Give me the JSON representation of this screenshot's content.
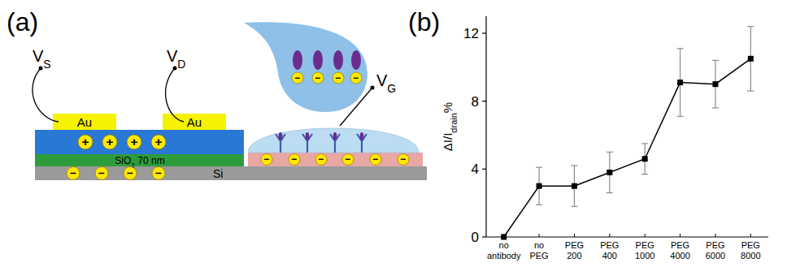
{
  "panel_labels": [
    "(a)",
    "(b)"
  ],
  "diagram": {
    "source_label": {
      "text": "V",
      "sub": "S"
    },
    "drain_label": {
      "text": "V",
      "sub": "D"
    },
    "gate_label": {
      "text": "V",
      "sub": "G"
    },
    "electrodes": [
      "Au",
      "Au"
    ],
    "oxide_label": {
      "text": "SiO",
      "sub": "2",
      "suffix": " 70 nm"
    },
    "substrate_label": "Si",
    "positive_charge": "+",
    "negative_charge": "−"
  },
  "chart_data": {
    "type": "line",
    "categories": [
      "no antibody",
      "no PEG",
      "PEG 200",
      "PEG 400",
      "PEG 1000",
      "PEG 4000",
      "PEG 6000",
      "PEG 8000"
    ],
    "values": [
      0,
      3,
      3,
      3.8,
      4.6,
      9.1,
      9.0,
      10.5
    ],
    "errors": [
      0,
      1.1,
      1.2,
      1.2,
      0.9,
      2.0,
      1.4,
      1.9
    ],
    "color": "#000000",
    "marker": "square",
    "y_label": [
      {
        "text": "ΔI/I"
      },
      {
        "text": "drain",
        "sub": true
      },
      {
        "text": "%"
      }
    ],
    "ylim": [
      0,
      13
    ],
    "yticks": [
      0,
      4,
      8,
      12
    ],
    "grid": false
  }
}
